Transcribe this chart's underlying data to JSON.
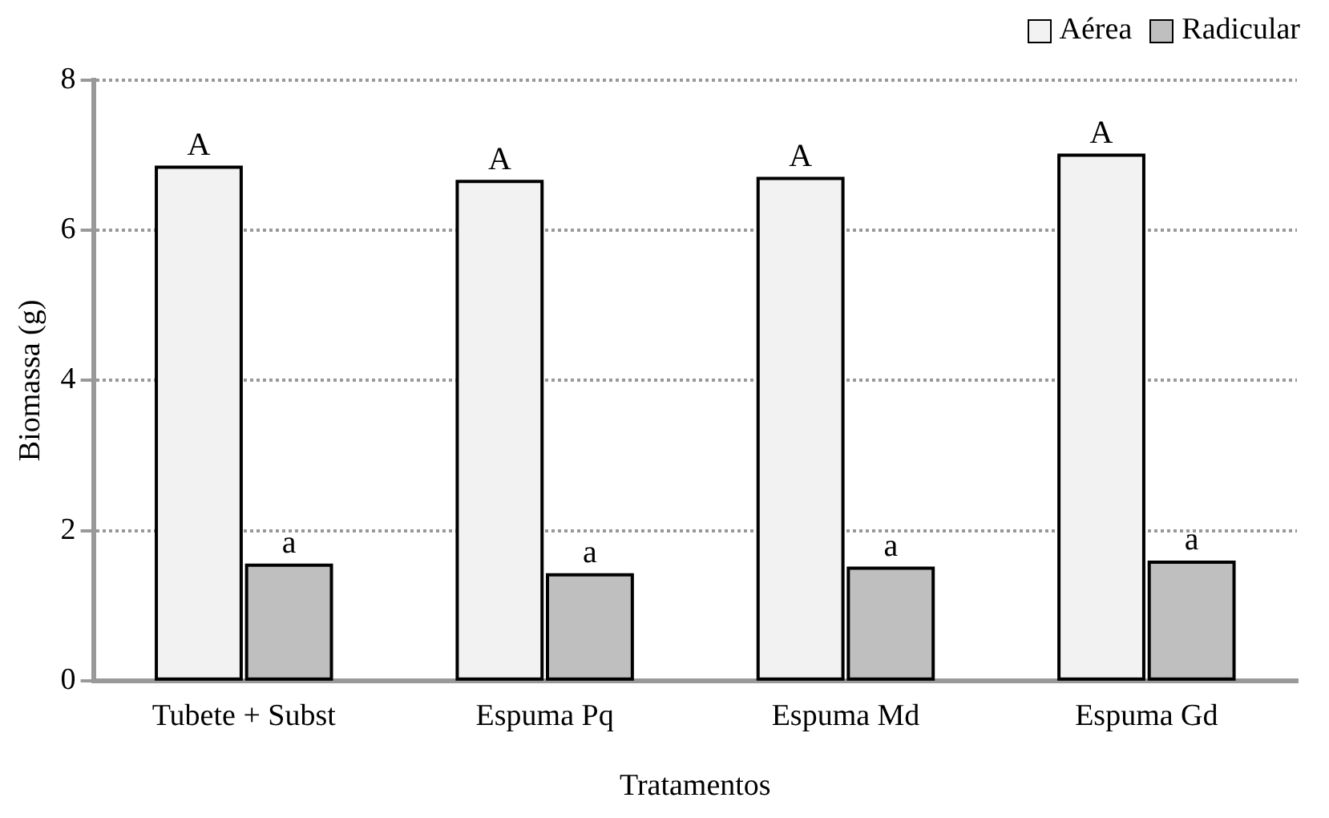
{
  "chart_data": {
    "type": "bar",
    "xlabel": "Tratamentos",
    "ylabel": "Biomassa (g)",
    "categories": [
      "Tubete + Subst",
      "Espuma Pq",
      "Espuma Md",
      "Espuma Gd"
    ],
    "series": [
      {
        "name": "Aérea",
        "color": "#f2f2f2",
        "values": [
          6.84,
          6.65,
          6.69,
          7.0
        ]
      },
      {
        "name": "Radicular",
        "color": "#bfbfbf",
        "values": [
          1.54,
          1.41,
          1.5,
          1.58
        ]
      }
    ],
    "ylim": [
      0,
      8
    ],
    "yticks": [
      0,
      2,
      4,
      6,
      8
    ],
    "grid": "y",
    "legend": "top right",
    "annotations": [
      {
        "text": "A",
        "x": "Tubete + Subst",
        "y": 6.84
      },
      {
        "text": "A",
        "x": "Espuma Pq",
        "y": 6.65
      },
      {
        "text": "A",
        "x": "Espuma Md",
        "y": 6.69
      },
      {
        "text": "A",
        "x": "Espuma Gd",
        "y": 7.0
      },
      {
        "text": "a",
        "x": "Tubete + Subst",
        "y": 1.54
      },
      {
        "text": "a",
        "x": "Espuma Pq",
        "y": 1.41
      },
      {
        "text": "a",
        "x": "Espuma Md",
        "y": 1.5
      },
      {
        "text": "a",
        "x": "Espuma Gd",
        "y": 1.58
      }
    ]
  }
}
